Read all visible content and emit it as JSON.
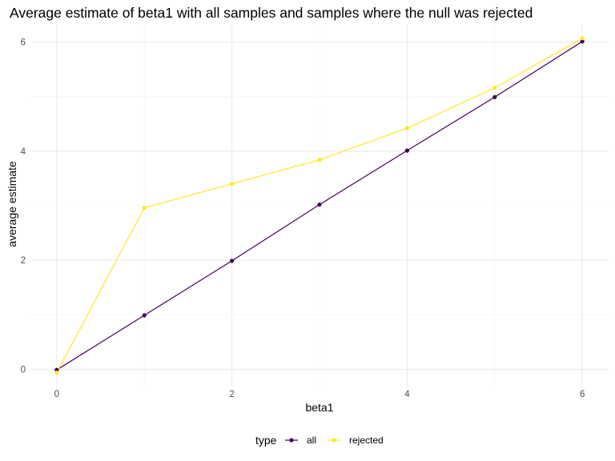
{
  "chart_data": {
    "type": "line",
    "title": "Average estimate of beta1 with all samples and samples where the null was rejected",
    "xlabel": "beta1",
    "ylabel": "average estimate",
    "x": [
      0,
      1,
      2,
      3,
      4,
      5,
      6
    ],
    "xlim": [
      -0.3,
      6.3
    ],
    "ylim": [
      -0.33,
      6.33
    ],
    "x_ticks": [
      0,
      2,
      4,
      6
    ],
    "y_ticks": [
      0,
      2,
      4,
      6
    ],
    "grid": true,
    "legend": {
      "title": "type",
      "position": "bottom"
    },
    "series": [
      {
        "name": "all",
        "color": "#440154",
        "values": [
          -0.01,
          0.99,
          1.99,
          3.02,
          4.01,
          4.99,
          6.01
        ]
      },
      {
        "name": "rejected",
        "color": "#FDE725",
        "values": [
          -0.06,
          2.96,
          3.4,
          3.84,
          4.42,
          5.16,
          6.07
        ]
      }
    ]
  }
}
